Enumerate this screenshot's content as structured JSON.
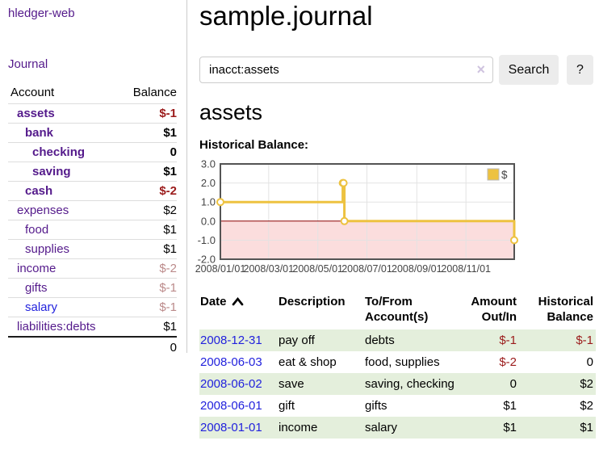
{
  "app": {
    "title": "hledger-web"
  },
  "colors": {
    "link_purple": "#541a8b",
    "link_blue": "#2222dd",
    "negative_strong": "#9b1b1b",
    "negative_faded": "#bb8a8a",
    "row_stripe_green": "#e4efdc",
    "button_gray": "#ececec"
  },
  "sidebar": {
    "journal_label": "Journal",
    "accounts_table": {
      "headers": {
        "account": "Account",
        "balance": "Balance"
      },
      "rows": [
        {
          "name": "assets",
          "depth": 1,
          "bold": true,
          "balance": "$-1",
          "balance_style": "neg-strong"
        },
        {
          "name": "bank",
          "depth": 2,
          "bold": true,
          "balance": "$1",
          "balance_style": ""
        },
        {
          "name": "checking",
          "depth": 3,
          "bold": true,
          "balance": "0",
          "balance_style": ""
        },
        {
          "name": "saving",
          "depth": 3,
          "bold": true,
          "balance": "$1",
          "balance_style": ""
        },
        {
          "name": "cash",
          "depth": 2,
          "bold": true,
          "balance": "$-2",
          "balance_style": "neg-strong"
        },
        {
          "name": "expenses",
          "depth": 1,
          "bold": false,
          "balance": "$2",
          "balance_style": ""
        },
        {
          "name": "food",
          "depth": 2,
          "bold": false,
          "balance": "$1",
          "balance_style": ""
        },
        {
          "name": "supplies",
          "depth": 2,
          "bold": false,
          "balance": "$1",
          "balance_style": ""
        },
        {
          "name": "income",
          "depth": 1,
          "bold": false,
          "balance": "$-2",
          "balance_style": "neg-faded"
        },
        {
          "name": "gifts",
          "depth": 2,
          "bold": false,
          "balance": "$-1",
          "balance_style": "neg-faded"
        },
        {
          "name": "salary",
          "depth": 2,
          "bold": false,
          "link_style": "blue",
          "balance": "$-1",
          "balance_style": "neg-faded"
        },
        {
          "name": "liabilities:debts",
          "depth": 1,
          "bold": false,
          "balance": "$1",
          "balance_style": ""
        }
      ],
      "total": "0"
    }
  },
  "main": {
    "title": "sample.journal",
    "search": {
      "value": "inacct:assets",
      "clear_icon": "×",
      "search_label": "Search",
      "help_label": "?"
    },
    "account_heading": "assets",
    "chart_label": "Historical Balance:"
  },
  "chart_data": {
    "type": "line",
    "title": "Historical Balance",
    "series": [
      {
        "name": "$",
        "color": "#edc240",
        "step": true,
        "points": [
          [
            "2008-01-01",
            1
          ],
          [
            "2008-06-01",
            2
          ],
          [
            "2008-06-02",
            2
          ],
          [
            "2008-06-03",
            0
          ],
          [
            "2008-12-31",
            -1
          ]
        ]
      }
    ],
    "x_range": [
      "2008-01-01",
      "2008-12-31"
    ],
    "ylim": [
      -2,
      3
    ],
    "y_ticks": [
      3,
      2,
      1,
      0,
      -1,
      -2
    ],
    "x_ticks": [
      {
        "date": "2008-01-01",
        "label": "2008/01/01"
      },
      {
        "date": "2008-03-01",
        "label": "2008/03/01"
      },
      {
        "date": "2008-05-01",
        "label": "2008/05/01"
      },
      {
        "date": "2008-07-01",
        "label": "2008/07/01"
      },
      {
        "date": "2008-09-01",
        "label": "2008/09/01"
      },
      {
        "date": "2008-11-01",
        "label": "2008/11/01"
      }
    ],
    "legend": {
      "position": "top-right",
      "label": "$"
    },
    "grid": true,
    "negative_region_fill": "#fbdddd",
    "zero_line_color": "#8b0000",
    "border_color": "#545454",
    "grid_color": "#e3e3e3"
  },
  "register": {
    "headers": {
      "date": "Date",
      "description": "Description",
      "accounts": "To/From Account(s)",
      "amount": "Amount Out/In",
      "balance": "Historical Balance"
    },
    "sort": {
      "column": "date",
      "direction": "ascending"
    },
    "rows": [
      {
        "date": "2008-12-31",
        "description": "pay off",
        "accounts": "debts",
        "amount": "$-1",
        "amount_neg": true,
        "balance": "$-1",
        "balance_neg": true
      },
      {
        "date": "2008-06-03",
        "description": "eat & shop",
        "accounts": "food, supplies",
        "amount": "$-2",
        "amount_neg": true,
        "balance": "0",
        "balance_neg": false
      },
      {
        "date": "2008-06-02",
        "description": "save",
        "accounts": "saving, checking",
        "amount": "0",
        "amount_neg": false,
        "balance": "$2",
        "balance_neg": false
      },
      {
        "date": "2008-06-01",
        "description": "gift",
        "accounts": "gifts",
        "amount": "$1",
        "amount_neg": false,
        "balance": "$2",
        "balance_neg": false
      },
      {
        "date": "2008-01-01",
        "description": "income",
        "accounts": "salary",
        "amount": "$1",
        "amount_neg": false,
        "balance": "$1",
        "balance_neg": false
      }
    ]
  }
}
